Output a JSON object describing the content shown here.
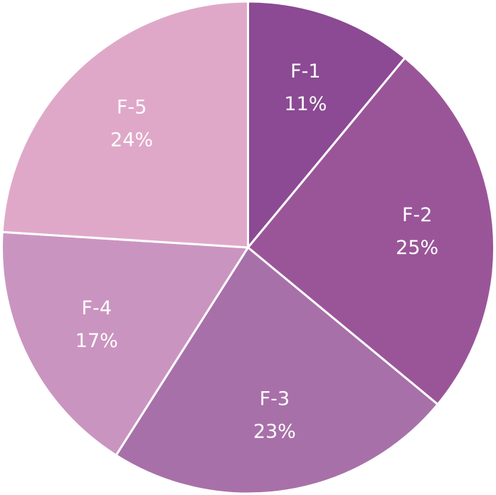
{
  "chart_data": {
    "type": "pie",
    "start_angle_deg": 0,
    "direction": "clockwise",
    "slices": [
      {
        "label": "F-1",
        "value": 11,
        "value_label": "11%",
        "color": "#8B4A93"
      },
      {
        "label": "F-2",
        "value": 25,
        "value_label": "25%",
        "color": "#9A5599"
      },
      {
        "label": "F-3",
        "value": 23,
        "value_label": "23%",
        "color": "#A870A8"
      },
      {
        "label": "F-4",
        "value": 17,
        "value_label": "17%",
        "color": "#CA94C0"
      },
      {
        "label": "F-5",
        "value": 24,
        "value_label": "24%",
        "color": "#DFA8C8"
      }
    ]
  }
}
